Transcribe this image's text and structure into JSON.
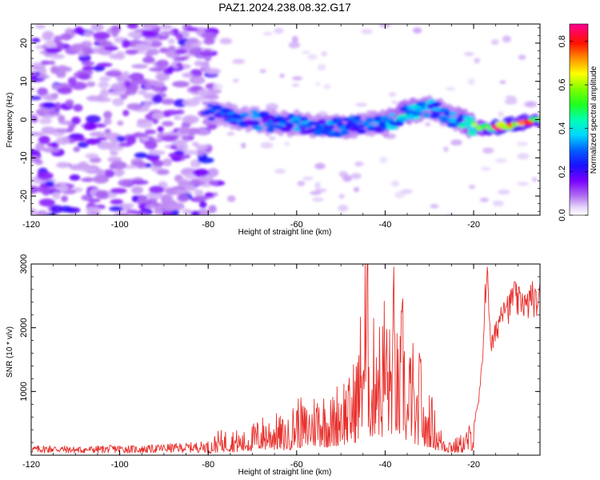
{
  "figure": {
    "title": "PAZ1.2024.238.08.32.G17"
  },
  "chart_data": [
    {
      "type": "heatmap",
      "xlabel": "Height of straight line (km)",
      "ylabel": "Frequency (Hz)",
      "xlim": [
        -120,
        -5
      ],
      "ylim": [
        -25,
        25
      ],
      "xticks": [
        -120,
        -100,
        -80,
        -60,
        -40,
        -20
      ],
      "yticks": [
        -20,
        -10,
        0,
        10,
        20
      ],
      "colorbar": {
        "label": "Normalized spectral amplitude",
        "range": [
          0,
          0.88
        ],
        "ticks": [
          0.0,
          0.2,
          0.4,
          0.6,
          0.8
        ],
        "colormap": [
          "#ffffff",
          "#e0c8f8",
          "#b070f0",
          "#8000ff",
          "#3000ff",
          "#0040ff",
          "#00d8ff",
          "#00ff80",
          "#80ff00",
          "#ffff00",
          "#ff8000",
          "#ff0000",
          "#ff0080"
        ]
      },
      "signal_track": {
        "description_points_height_km": [
          -80,
          -75,
          -70,
          -65,
          -60,
          -55,
          -50,
          -45,
          -40,
          -35,
          -30,
          -25,
          -20,
          -15,
          -10,
          -5
        ],
        "center_frequency_hz": [
          2,
          1,
          0,
          -1,
          -1,
          -2,
          -2,
          -1,
          -1,
          2,
          3,
          1,
          -2,
          -2,
          -1,
          0
        ],
        "peak_amplitude": [
          0.25,
          0.3,
          0.3,
          0.3,
          0.32,
          0.3,
          0.35,
          0.3,
          0.35,
          0.4,
          0.35,
          0.3,
          0.5,
          0.85,
          0.8,
          0.7
        ]
      },
      "noise_region_km": [
        -120,
        -80
      ]
    },
    {
      "type": "line",
      "xlabel": "Height of straight line (km)",
      "ylabel": "SNR (10 * v/v)",
      "xlim": [
        -120,
        -5
      ],
      "ylim": [
        0,
        3000
      ],
      "xticks": [
        -120,
        -100,
        -80,
        -60,
        -40,
        -20
      ],
      "yticks": [
        1000,
        2000,
        3000
      ],
      "series": [
        {
          "color": "#e8302c",
          "x": [
            -120,
            -115,
            -110,
            -105,
            -100,
            -95,
            -90,
            -85,
            -80,
            -78,
            -75,
            -72,
            -70,
            -68,
            -65,
            -62,
            -60,
            -58,
            -55,
            -52,
            -50,
            -48,
            -46,
            -45,
            -44,
            -43,
            -42,
            -41,
            -40,
            -39,
            -38,
            -37,
            -36,
            -35,
            -34,
            -33,
            -32,
            -31,
            -30,
            -28,
            -26,
            -24,
            -22,
            -21,
            -20,
            -19,
            -18,
            -17.5,
            -17,
            -16,
            -15,
            -14,
            -13,
            -12,
            -11,
            -10,
            -9,
            -8,
            -7,
            -6,
            -5
          ],
          "y": [
            100,
            110,
            90,
            100,
            110,
            100,
            120,
            130,
            150,
            300,
            350,
            300,
            400,
            500,
            550,
            450,
            800,
            650,
            900,
            750,
            1100,
            1000,
            1500,
            2500,
            3000,
            1200,
            2600,
            1500,
            2400,
            1700,
            2500,
            1300,
            2200,
            900,
            1800,
            600,
            1600,
            500,
            900,
            400,
            250,
            220,
            300,
            400,
            500,
            800,
            1500,
            2600,
            3000,
            1800,
            2000,
            2300,
            2600,
            2400,
            2700,
            2500,
            2600,
            2400,
            2650,
            2500,
            2600
          ]
        }
      ]
    }
  ]
}
